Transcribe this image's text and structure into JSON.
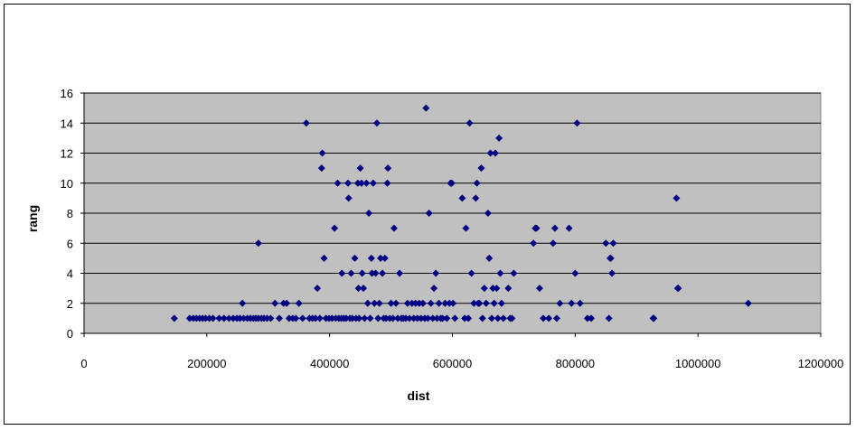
{
  "chart_data": {
    "type": "scatter",
    "title": "",
    "xlabel": "dist",
    "ylabel": "rang",
    "xlim": [
      0,
      1200000
    ],
    "ylim": [
      0,
      16
    ],
    "x_ticks": [
      0,
      200000,
      400000,
      600000,
      800000,
      1000000,
      1200000
    ],
    "x_tick_labels": [
      "0",
      "200000",
      "400000",
      "600000",
      "800000",
      "1000000",
      "1200000"
    ],
    "y_ticks": [
      0,
      2,
      4,
      6,
      8,
      10,
      12,
      14,
      16
    ],
    "y_tick_labels": [
      "0",
      "2",
      "4",
      "6",
      "8",
      "10",
      "12",
      "14",
      "16"
    ],
    "grid": "horizontal",
    "legend": "none",
    "colors": {
      "plot_background": "#c0c0c0",
      "marker": "#000080",
      "gridline": "#000000"
    },
    "points": [
      [
        147000,
        1
      ],
      [
        172000,
        1
      ],
      [
        178000,
        1
      ],
      [
        183000,
        1
      ],
      [
        188000,
        1
      ],
      [
        193000,
        1
      ],
      [
        198000,
        1
      ],
      [
        204000,
        1
      ],
      [
        210000,
        1
      ],
      [
        220000,
        1
      ],
      [
        228000,
        1
      ],
      [
        236000,
        1
      ],
      [
        243000,
        1
      ],
      [
        249000,
        1
      ],
      [
        254000,
        1
      ],
      [
        258000,
        2
      ],
      [
        260000,
        1
      ],
      [
        266000,
        1
      ],
      [
        271000,
        1
      ],
      [
        276000,
        1
      ],
      [
        280000,
        1
      ],
      [
        284000,
        1
      ],
      [
        289000,
        1
      ],
      [
        293000,
        1
      ],
      [
        298000,
        1
      ],
      [
        284000,
        6
      ],
      [
        304000,
        1
      ],
      [
        311000,
        2
      ],
      [
        318000,
        1
      ],
      [
        325000,
        2
      ],
      [
        330000,
        2
      ],
      [
        334000,
        1
      ],
      [
        340000,
        1
      ],
      [
        345000,
        1
      ],
      [
        350000,
        2
      ],
      [
        356000,
        1
      ],
      [
        362000,
        14
      ],
      [
        367000,
        1
      ],
      [
        372000,
        1
      ],
      [
        377000,
        1
      ],
      [
        380000,
        3
      ],
      [
        384000,
        1
      ],
      [
        387000,
        11
      ],
      [
        388000,
        12
      ],
      [
        391000,
        5
      ],
      [
        394000,
        1
      ],
      [
        399000,
        1
      ],
      [
        404000,
        1
      ],
      [
        408000,
        7
      ],
      [
        410000,
        1
      ],
      [
        413000,
        10
      ],
      [
        415000,
        1
      ],
      [
        419000,
        1
      ],
      [
        420000,
        4
      ],
      [
        423000,
        1
      ],
      [
        427000,
        1
      ],
      [
        430000,
        10
      ],
      [
        431000,
        9
      ],
      [
        433000,
        1
      ],
      [
        435000,
        4
      ],
      [
        437000,
        1
      ],
      [
        441000,
        5
      ],
      [
        443000,
        1
      ],
      [
        446000,
        10
      ],
      [
        447000,
        3
      ],
      [
        448000,
        1
      ],
      [
        450000,
        11
      ],
      [
        452000,
        10
      ],
      [
        453000,
        4
      ],
      [
        455000,
        3
      ],
      [
        457000,
        1
      ],
      [
        460000,
        10
      ],
      [
        462000,
        2
      ],
      [
        464000,
        8
      ],
      [
        466000,
        1
      ],
      [
        468000,
        5
      ],
      [
        469000,
        4
      ],
      [
        471000,
        10
      ],
      [
        473000,
        2
      ],
      [
        475000,
        4
      ],
      [
        477000,
        14
      ],
      [
        479000,
        1
      ],
      [
        481000,
        2
      ],
      [
        483000,
        5
      ],
      [
        486000,
        4
      ],
      [
        488000,
        1
      ],
      [
        490000,
        5
      ],
      [
        492000,
        1
      ],
      [
        494000,
        10
      ],
      [
        495000,
        11
      ],
      [
        498000,
        1
      ],
      [
        500000,
        2
      ],
      [
        503000,
        1
      ],
      [
        505000,
        7
      ],
      [
        508000,
        2
      ],
      [
        511000,
        1
      ],
      [
        514000,
        4
      ],
      [
        517000,
        1
      ],
      [
        520000,
        1
      ],
      [
        524000,
        1
      ],
      [
        527000,
        2
      ],
      [
        530000,
        1
      ],
      [
        534000,
        2
      ],
      [
        537000,
        1
      ],
      [
        540000,
        2
      ],
      [
        543000,
        1
      ],
      [
        546000,
        2
      ],
      [
        549000,
        1
      ],
      [
        552000,
        2
      ],
      [
        555000,
        1
      ],
      [
        557000,
        15
      ],
      [
        560000,
        1
      ],
      [
        562000,
        8
      ],
      [
        565000,
        2
      ],
      [
        568000,
        1
      ],
      [
        570000,
        3
      ],
      [
        573000,
        4
      ],
      [
        575000,
        1
      ],
      [
        578000,
        2
      ],
      [
        581000,
        1
      ],
      [
        584000,
        1
      ],
      [
        588000,
        2
      ],
      [
        591000,
        1
      ],
      [
        595000,
        2
      ],
      [
        597000,
        10
      ],
      [
        599000,
        10
      ],
      [
        601000,
        2
      ],
      [
        604000,
        1
      ],
      [
        616000,
        9
      ],
      [
        620000,
        1
      ],
      [
        622000,
        7
      ],
      [
        626000,
        1
      ],
      [
        628000,
        14
      ],
      [
        631000,
        4
      ],
      [
        635000,
        2
      ],
      [
        638000,
        9
      ],
      [
        640000,
        10
      ],
      [
        642000,
        2
      ],
      [
        644000,
        2
      ],
      [
        647000,
        11
      ],
      [
        649000,
        1
      ],
      [
        652000,
        3
      ],
      [
        655000,
        2
      ],
      [
        658000,
        8
      ],
      [
        660000,
        5
      ],
      [
        662000,
        12
      ],
      [
        664000,
        1
      ],
      [
        666000,
        3
      ],
      [
        668000,
        2
      ],
      [
        670000,
        12
      ],
      [
        672000,
        3
      ],
      [
        674000,
        1
      ],
      [
        676000,
        13
      ],
      [
        678000,
        4
      ],
      [
        680000,
        2
      ],
      [
        683000,
        1
      ],
      [
        691000,
        3
      ],
      [
        694000,
        1
      ],
      [
        697000,
        1
      ],
      [
        700000,
        4
      ],
      [
        732000,
        6
      ],
      [
        735000,
        7
      ],
      [
        737000,
        7
      ],
      [
        742000,
        3
      ],
      [
        748000,
        1
      ],
      [
        757000,
        1
      ],
      [
        764000,
        6
      ],
      [
        767000,
        7
      ],
      [
        770000,
        1
      ],
      [
        775000,
        2
      ],
      [
        790000,
        7
      ],
      [
        794000,
        2
      ],
      [
        800000,
        4
      ],
      [
        803000,
        14
      ],
      [
        808000,
        2
      ],
      [
        820000,
        1
      ],
      [
        826000,
        1
      ],
      [
        850000,
        6
      ],
      [
        855000,
        1
      ],
      [
        857000,
        5
      ],
      [
        858000,
        5
      ],
      [
        860000,
        4
      ],
      [
        862000,
        6
      ],
      [
        927000,
        1
      ],
      [
        928000,
        1
      ],
      [
        965000,
        9
      ],
      [
        967000,
        3
      ],
      [
        968000,
        3
      ],
      [
        1082000,
        2
      ]
    ]
  }
}
